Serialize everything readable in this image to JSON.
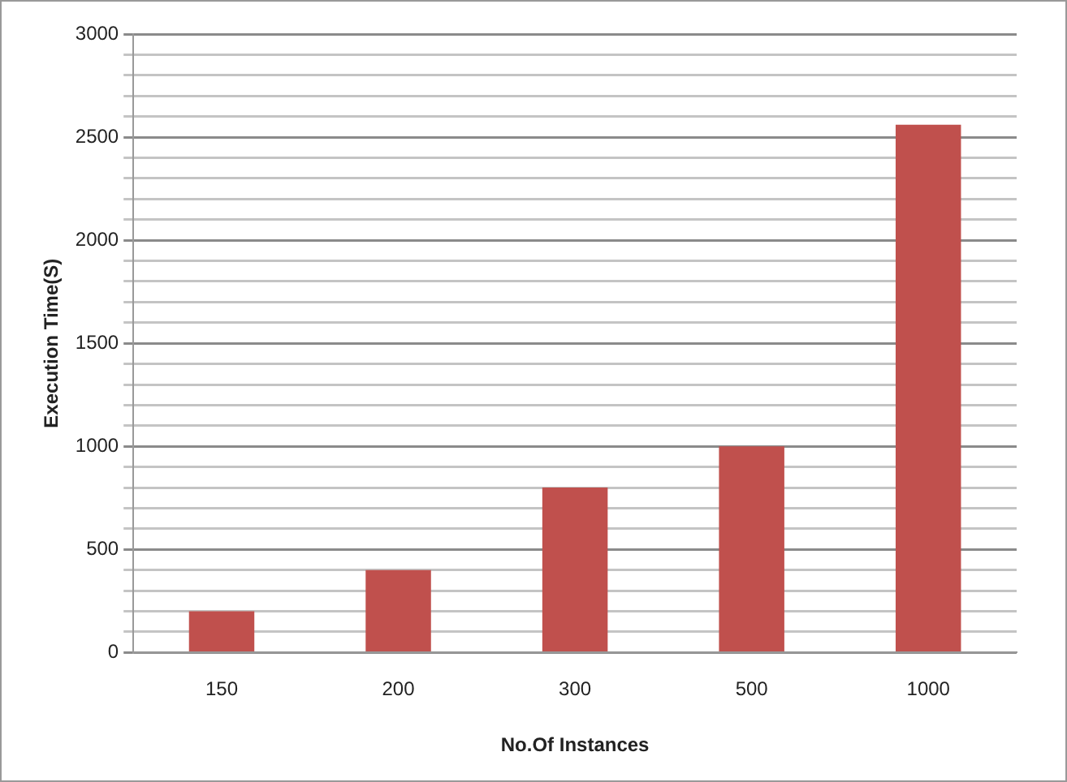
{
  "chart_data": {
    "type": "bar",
    "xlabel": "No.Of Instances",
    "ylabel": "Execution Time(S)",
    "categories": [
      "150",
      "200",
      "300",
      "500",
      "1000"
    ],
    "series": [
      {
        "color": "#c0504d",
        "values": [
          200,
          400,
          800,
          1000,
          2560
        ]
      }
    ],
    "ylim": [
      0,
      3000
    ],
    "yticks": [
      0,
      {
        "value": 100,
        "label": null
      },
      {
        "value": 200,
        "label": null
      },
      {
        "value": 300,
        "label": null
      },
      {
        "value": 400,
        "label": null
      },
      500,
      {
        "value": 600,
        "label": null
      },
      {
        "value": 700,
        "label": null
      },
      {
        "value": 800,
        "label": null
      },
      {
        "value": 900,
        "label": null
      },
      1000,
      {
        "value": 1100,
        "label": null
      },
      {
        "value": 1200,
        "label": null
      },
      {
        "value": 1300,
        "label": null
      },
      {
        "value": 1400,
        "label": null
      },
      1500,
      {
        "value": 1600,
        "label": null
      },
      {
        "value": 1700,
        "label": null
      },
      {
        "value": 1800,
        "label": null
      },
      {
        "value": 1900,
        "label": null
      },
      2000,
      {
        "value": 2100,
        "label": null
      },
      {
        "value": 2200,
        "label": null
      },
      {
        "value": 2300,
        "label": null
      },
      {
        "value": 2400,
        "label": null
      },
      2500,
      {
        "value": 2600,
        "label": null
      },
      {
        "value": 2700,
        "label": null
      },
      {
        "value": 2800,
        "label": null
      },
      {
        "value": 2900,
        "label": null
      },
      3000
    ],
    "grid": "y",
    "legend": false
  }
}
